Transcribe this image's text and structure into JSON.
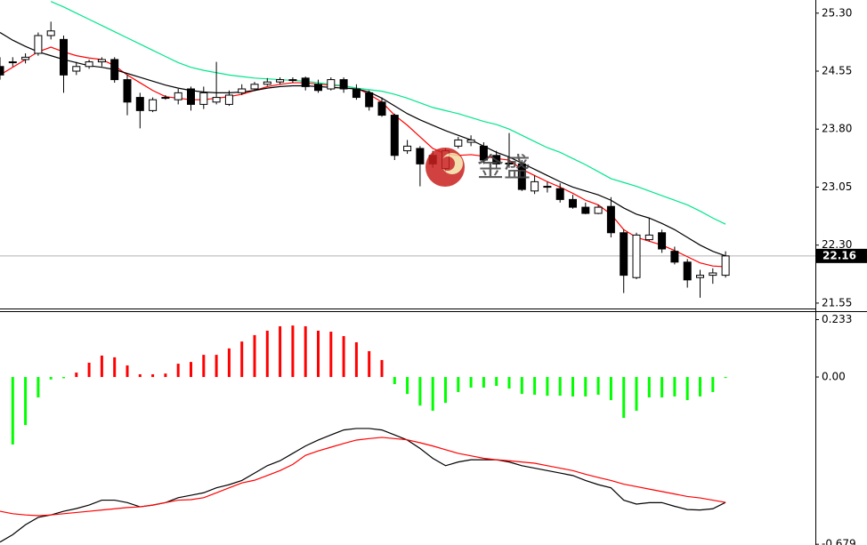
{
  "chart_data": [
    {
      "type": "candlestick",
      "ylim": [
        21.48,
        25.47
      ],
      "yticks": [
        {
          "value": 25.3,
          "label": "25.30"
        },
        24.55,
        {
          "value": 23.8,
          "label": "23.80"
        },
        23.05,
        {
          "value": 22.3,
          "label": "22.30"
        },
        21.55
      ],
      "current_price": 22.16,
      "open": [
        24.61,
        24.67,
        24.7,
        24.78,
        25.01,
        24.96,
        24.55,
        24.61,
        24.67,
        24.7,
        24.44,
        24.21,
        24.04,
        24.21,
        24.18,
        24.32,
        24.12,
        24.15,
        24.12,
        24.27,
        24.32,
        24.38,
        24.41,
        24.44,
        24.46,
        24.38,
        24.32,
        24.44,
        24.32,
        24.27,
        24.15,
        23.98,
        23.52,
        23.55,
        23.46,
        23.29,
        23.58,
        23.63,
        23.58,
        23.46,
        23.35,
        23.35,
        23.0,
        23.06,
        23.03,
        22.89,
        22.79,
        22.71,
        22.8,
        22.46,
        21.88,
        22.37,
        22.46,
        22.22,
        22.08,
        21.88,
        21.91,
        21.91
      ],
      "high": [
        24.73,
        24.73,
        24.78,
        25.05,
        25.19,
        25.01,
        24.67,
        24.7,
        24.73,
        24.73,
        24.5,
        24.27,
        24.21,
        24.24,
        24.32,
        24.35,
        24.35,
        24.67,
        24.3,
        24.38,
        24.41,
        24.46,
        24.47,
        24.47,
        24.48,
        24.44,
        24.47,
        24.47,
        24.38,
        24.3,
        24.21,
        24.0,
        23.66,
        23.58,
        23.52,
        23.55,
        23.7,
        23.72,
        23.63,
        23.52,
        23.75,
        23.4,
        23.2,
        23.12,
        23.1,
        22.95,
        22.85,
        22.82,
        22.92,
        22.5,
        22.46,
        22.65,
        22.5,
        22.28,
        22.12,
        21.98,
        22.0,
        22.22
      ],
      "low": [
        24.44,
        24.61,
        24.65,
        24.75,
        24.96,
        24.27,
        24.5,
        24.58,
        24.61,
        24.4,
        23.98,
        23.81,
        24.02,
        24.18,
        24.12,
        24.04,
        24.06,
        24.12,
        24.1,
        24.24,
        24.3,
        24.36,
        24.38,
        24.4,
        24.3,
        24.27,
        24.3,
        24.27,
        24.18,
        24.04,
        23.96,
        23.4,
        23.48,
        23.06,
        23.3,
        23.25,
        23.55,
        23.58,
        23.35,
        23.3,
        23.3,
        23.0,
        22.96,
        22.98,
        22.85,
        22.77,
        22.7,
        22.7,
        22.4,
        21.68,
        21.86,
        22.35,
        22.2,
        22.05,
        21.75,
        21.62,
        21.8,
        21.88
      ],
      "close": [
        24.5,
        24.67,
        24.73,
        25.01,
        25.07,
        24.5,
        24.61,
        24.67,
        24.7,
        24.44,
        24.15,
        24.04,
        24.18,
        24.21,
        24.27,
        24.12,
        24.27,
        24.21,
        24.24,
        24.32,
        24.38,
        24.41,
        24.44,
        24.43,
        24.35,
        24.3,
        24.44,
        24.32,
        24.21,
        24.09,
        23.98,
        23.46,
        23.58,
        23.35,
        23.35,
        23.52,
        23.66,
        23.66,
        23.4,
        23.35,
        23.36,
        23.02,
        23.12,
        23.05,
        22.89,
        22.79,
        22.71,
        22.79,
        22.46,
        21.91,
        22.43,
        22.43,
        22.25,
        22.08,
        21.85,
        21.91,
        21.94,
        22.16
      ],
      "series": [
        {
          "color": "#ff0000",
          "values": [
            24.5,
            24.6,
            24.7,
            24.8,
            24.86,
            24.8,
            24.75,
            24.72,
            24.7,
            24.62,
            24.5,
            24.4,
            24.3,
            24.22,
            24.2,
            24.18,
            24.18,
            24.2,
            24.22,
            24.25,
            24.3,
            24.35,
            24.38,
            24.4,
            24.4,
            24.38,
            24.37,
            24.36,
            24.33,
            24.25,
            24.15,
            23.98,
            23.85,
            23.7,
            23.55,
            23.48,
            23.46,
            23.47,
            23.45,
            23.42,
            23.4,
            23.28,
            23.2,
            23.12,
            23.05,
            22.97,
            22.88,
            22.82,
            22.7,
            22.5,
            22.4,
            22.35,
            22.3,
            22.23,
            22.15,
            22.07,
            22.03,
            22.02
          ]
        },
        {
          "color": "#000000",
          "values": [
            25.05,
            24.95,
            24.87,
            24.8,
            24.75,
            24.7,
            24.66,
            24.62,
            24.6,
            24.57,
            24.52,
            24.47,
            24.42,
            24.37,
            24.33,
            24.3,
            24.28,
            24.27,
            24.27,
            24.28,
            24.3,
            24.33,
            24.35,
            24.36,
            24.36,
            24.35,
            24.34,
            24.33,
            24.32,
            24.28,
            24.2,
            24.1,
            24.0,
            23.92,
            23.85,
            23.78,
            23.72,
            23.66,
            23.58,
            23.5,
            23.44,
            23.36,
            23.28,
            23.2,
            23.12,
            23.05,
            23.0,
            22.95,
            22.88,
            22.78,
            22.7,
            22.65,
            22.58,
            22.5,
            22.4,
            22.3,
            22.22,
            22.16
          ]
        },
        {
          "color": "#00e68c",
          "values": [
            null,
            null,
            null,
            null,
            25.45,
            25.38,
            25.3,
            25.22,
            25.14,
            25.06,
            24.98,
            24.9,
            24.82,
            24.74,
            24.66,
            24.6,
            24.56,
            24.53,
            24.5,
            24.48,
            24.46,
            24.45,
            24.44,
            24.43,
            24.42,
            24.4,
            24.38,
            24.36,
            24.33,
            24.31,
            24.29,
            24.25,
            24.2,
            24.14,
            24.08,
            24.04,
            24.0,
            23.95,
            23.9,
            23.86,
            23.8,
            23.72,
            23.64,
            23.56,
            23.5,
            23.42,
            23.34,
            23.25,
            23.16,
            23.11,
            23.06,
            23.0,
            22.94,
            22.88,
            22.82,
            22.74,
            22.65,
            22.57
          ]
        }
      ],
      "watermark": "金盛"
    },
    {
      "type": "bar",
      "ylim": [
        -0.682,
        0.26
      ],
      "yticks": [
        0.233,
        {
          "value": 0,
          "label": "0.00"
        },
        -0.679
      ],
      "positive_color": "#ff0000",
      "negative_color": "#00ff00",
      "values": [
        null,
        -0.274,
        -0.195,
        -0.083,
        -0.01,
        -0.005,
        0.018,
        0.058,
        0.087,
        0.08,
        0.047,
        0.011,
        0.011,
        0.014,
        0.054,
        0.061,
        0.09,
        0.09,
        0.116,
        0.144,
        0.17,
        0.188,
        0.206,
        0.209,
        0.206,
        0.188,
        0.184,
        0.166,
        0.141,
        0.105,
        0.069,
        -0.029,
        -0.069,
        -0.116,
        -0.137,
        -0.105,
        -0.061,
        -0.043,
        -0.043,
        -0.036,
        -0.047,
        -0.069,
        -0.072,
        -0.076,
        -0.076,
        -0.079,
        -0.079,
        -0.072,
        -0.094,
        -0.166,
        -0.137,
        -0.083,
        -0.083,
        -0.079,
        -0.094,
        -0.079,
        -0.061,
        -0.004
      ],
      "series": [
        {
          "color": "#000000",
          "values": [
            -0.67,
            -0.64,
            -0.6,
            -0.57,
            -0.56,
            -0.545,
            -0.534,
            -0.52,
            -0.5,
            -0.5,
            -0.51,
            -0.527,
            -0.52,
            -0.51,
            -0.49,
            -0.48,
            -0.47,
            -0.45,
            -0.437,
            -0.42,
            -0.39,
            -0.36,
            -0.34,
            -0.31,
            -0.28,
            -0.256,
            -0.235,
            -0.215,
            -0.209,
            -0.209,
            -0.215,
            -0.235,
            -0.256,
            -0.29,
            -0.33,
            -0.36,
            -0.345,
            -0.336,
            -0.336,
            -0.336,
            -0.345,
            -0.36,
            -0.37,
            -0.38,
            -0.39,
            -0.4,
            -0.42,
            -0.437,
            -0.45,
            -0.5,
            -0.516,
            -0.51,
            -0.51,
            -0.525,
            -0.538,
            -0.54,
            -0.535,
            -0.509
          ]
        },
        {
          "color": "#ff0000",
          "values": [
            -0.545,
            -0.555,
            -0.56,
            -0.563,
            -0.56,
            -0.555,
            -0.55,
            -0.545,
            -0.54,
            -0.535,
            -0.53,
            -0.527,
            -0.52,
            -0.51,
            -0.5,
            -0.498,
            -0.49,
            -0.47,
            -0.45,
            -0.43,
            -0.419,
            -0.4,
            -0.38,
            -0.355,
            -0.318,
            -0.3,
            -0.285,
            -0.27,
            -0.256,
            -0.25,
            -0.245,
            -0.25,
            -0.255,
            -0.267,
            -0.28,
            -0.295,
            -0.31,
            -0.32,
            -0.33,
            -0.336,
            -0.34,
            -0.345,
            -0.35,
            -0.36,
            -0.37,
            -0.38,
            -0.395,
            -0.408,
            -0.42,
            -0.435,
            -0.445,
            -0.455,
            -0.465,
            -0.475,
            -0.485,
            -0.491,
            -0.5,
            -0.509
          ]
        }
      ]
    }
  ]
}
